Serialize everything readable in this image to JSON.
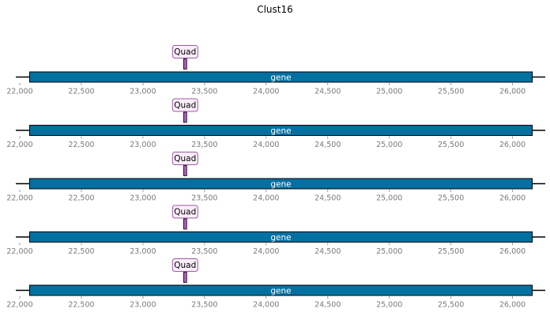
{
  "title": "Clust16",
  "colors": {
    "gene_fill": "#0370a2",
    "gene_stroke": "#000000",
    "feature_fill": "#b35cc4",
    "label_bg": "#fbeefb",
    "label_border": "#9b5aa0",
    "axis_tick": "#808080",
    "baseline": "#000000"
  },
  "chart_data": {
    "type": "genome-track",
    "x_range": [
      22000,
      26250
    ],
    "ticks": [
      22000,
      22500,
      23000,
      23500,
      24000,
      24500,
      25000,
      25500,
      26000
    ],
    "tick_labels": [
      "22,000",
      "22,500",
      "23,000",
      "23,500",
      "24,000",
      "24,500",
      "25,000",
      "25,500",
      "26,000"
    ],
    "tracks": [
      {
        "gene": {
          "label": "gene",
          "start": 22080,
          "end": 26160
        },
        "feature": {
          "label": "Quad",
          "start": 23330,
          "end": 23355
        }
      },
      {
        "gene": {
          "label": "gene",
          "start": 22080,
          "end": 26160
        },
        "feature": {
          "label": "Quad",
          "start": 23330,
          "end": 23355
        }
      },
      {
        "gene": {
          "label": "gene",
          "start": 22080,
          "end": 26160
        },
        "feature": {
          "label": "Quad",
          "start": 23330,
          "end": 23355
        }
      },
      {
        "gene": {
          "label": "gene",
          "start": 22080,
          "end": 26160
        },
        "feature": {
          "label": "Quad",
          "start": 23330,
          "end": 23355
        }
      },
      {
        "gene": {
          "label": "gene",
          "start": 22080,
          "end": 26160
        },
        "feature": {
          "label": "Quad",
          "start": 23330,
          "end": 23355
        }
      }
    ]
  }
}
